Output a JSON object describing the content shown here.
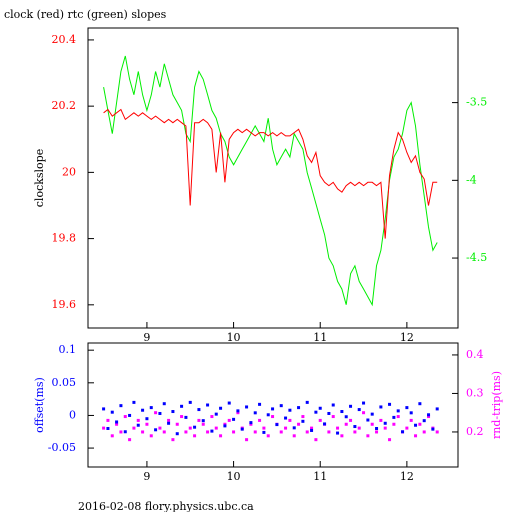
{
  "chart_data": [
    {
      "type": "line",
      "title": "clock (red) rtc (green) slopes",
      "ylabel": "clockslope",
      "x": [
        8.5,
        8.55,
        8.6,
        8.65,
        8.7,
        8.75,
        8.8,
        8.85,
        8.9,
        8.95,
        9,
        9.05,
        9.1,
        9.15,
        9.2,
        9.25,
        9.3,
        9.35,
        9.4,
        9.45,
        9.5,
        9.55,
        9.6,
        9.65,
        9.7,
        9.75,
        9.8,
        9.85,
        9.9,
        9.95,
        10,
        10.05,
        10.1,
        10.15,
        10.2,
        10.25,
        10.3,
        10.35,
        10.4,
        10.45,
        10.5,
        10.55,
        10.6,
        10.65,
        10.7,
        10.75,
        10.8,
        10.85,
        10.9,
        10.95,
        11,
        11.05,
        11.1,
        11.15,
        11.2,
        11.25,
        11.3,
        11.35,
        11.4,
        11.45,
        11.5,
        11.55,
        11.6,
        11.65,
        11.7,
        11.75,
        11.8,
        11.85,
        11.9,
        11.95,
        12,
        12.05,
        12.1,
        12.15,
        12.2,
        12.25,
        12.3,
        12.35
      ],
      "series": [
        {
          "color": "#ff0000",
          "values": [
            20.18,
            20.19,
            20.17,
            20.18,
            20.19,
            20.16,
            20.17,
            20.18,
            20.17,
            20.18,
            20.17,
            20.16,
            20.17,
            20.16,
            20.15,
            20.16,
            20.15,
            20.16,
            20.15,
            20.14,
            19.9,
            20.15,
            20.15,
            20.16,
            20.15,
            20.13,
            20.0,
            20.12,
            19.97,
            20.1,
            20.12,
            20.13,
            20.12,
            20.13,
            20.12,
            20.11,
            20.12,
            20.12,
            20.11,
            20.12,
            20.11,
            20.12,
            20.11,
            20.11,
            20.12,
            20.13,
            20.1,
            20.05,
            20.03,
            20.06,
            19.99,
            19.97,
            19.96,
            19.97,
            19.95,
            19.94,
            19.96,
            19.97,
            19.96,
            19.97,
            19.96,
            19.97,
            19.97,
            19.96,
            19.97,
            19.8,
            19.99,
            20.07,
            20.12,
            20.1,
            20.06,
            20.03,
            20.05,
            20.0,
            19.98,
            19.9,
            19.97,
            19.97
          ]
        },
        {
          "color": "#00ee00",
          "axis": "y2",
          "values": [
            -3.4,
            -3.55,
            -3.7,
            -3.5,
            -3.3,
            -3.2,
            -3.35,
            -3.45,
            -3.3,
            -3.45,
            -3.55,
            -3.45,
            -3.3,
            -3.4,
            -3.25,
            -3.35,
            -3.45,
            -3.5,
            -3.55,
            -3.7,
            -3.75,
            -3.4,
            -3.3,
            -3.35,
            -3.45,
            -3.55,
            -3.6,
            -3.7,
            -3.75,
            -3.85,
            -3.9,
            -3.85,
            -3.8,
            -3.75,
            -3.7,
            -3.65,
            -3.7,
            -3.75,
            -3.6,
            -3.8,
            -3.9,
            -3.85,
            -3.8,
            -3.85,
            -3.7,
            -3.75,
            -3.8,
            -3.95,
            -4.05,
            -4.15,
            -4.25,
            -4.35,
            -4.5,
            -4.55,
            -4.65,
            -4.7,
            -4.8,
            -4.6,
            -4.55,
            -4.65,
            -4.7,
            -4.75,
            -4.8,
            -4.55,
            -4.45,
            -4.25,
            -4.0,
            -3.85,
            -3.8,
            -3.7,
            -3.55,
            -3.5,
            -3.65,
            -3.9,
            -4.1,
            -4.3,
            -4.45,
            -4.4
          ]
        }
      ],
      "xlim": [
        8.32,
        12.59
      ],
      "xticks": [
        9,
        10,
        11,
        12
      ],
      "ylim": [
        19.53,
        20.436
      ],
      "yticks": [
        19.6,
        19.8,
        20,
        20.2,
        20.4
      ],
      "y2lim": [
        -4.95,
        -3.02
      ],
      "y2ticks": [
        -4.5,
        -4,
        -3.5
      ]
    },
    {
      "type": "scatter",
      "ylabel": "offset(ms)",
      "y2label": "rnd-trip(ms)",
      "x": [
        8.5,
        8.55,
        8.6,
        8.65,
        8.7,
        8.75,
        8.8,
        8.85,
        8.9,
        8.95,
        9,
        9.05,
        9.1,
        9.15,
        9.2,
        9.25,
        9.3,
        9.35,
        9.4,
        9.45,
        9.5,
        9.55,
        9.6,
        9.65,
        9.7,
        9.75,
        9.8,
        9.85,
        9.9,
        9.95,
        10,
        10.05,
        10.1,
        10.15,
        10.2,
        10.25,
        10.3,
        10.35,
        10.4,
        10.45,
        10.5,
        10.55,
        10.6,
        10.65,
        10.7,
        10.75,
        10.8,
        10.85,
        10.9,
        10.95,
        11,
        11.05,
        11.1,
        11.15,
        11.2,
        11.25,
        11.3,
        11.35,
        11.4,
        11.45,
        11.5,
        11.55,
        11.6,
        11.65,
        11.7,
        11.75,
        11.8,
        11.85,
        11.9,
        11.95,
        12,
        12.05,
        12.1,
        12.15,
        12.2,
        12.25,
        12.3,
        12.35
      ],
      "series": [
        {
          "color": "#0000ff",
          "values": [
            0.01,
            -0.02,
            0.005,
            -0.01,
            0.015,
            -0.025,
            0,
            0.02,
            -0.015,
            0.008,
            -0.005,
            0.012,
            -0.022,
            0.003,
            0.018,
            -0.012,
            0.006,
            -0.028,
            0.014,
            -0.003,
            0.02,
            -0.018,
            0.009,
            -0.008,
            0.016,
            -0.024,
            0.002,
            0.011,
            -0.016,
            0.019,
            -0.006,
            0.007,
            -0.021,
            0.013,
            -0.011,
            0.004,
            0.017,
            -0.026,
            0.001,
            0.01,
            -0.014,
            0.015,
            -0.004,
            0.008,
            -0.019,
            0.012,
            -0.009,
            0.02,
            -0.023,
            0.005,
            0.011,
            -0.013,
            0.003,
            0.016,
            -0.027,
            0.006,
            -0.002,
            0.014,
            -0.017,
            0.009,
            0.019,
            -0.007,
            0.002,
            -0.02,
            0.013,
            -0.012,
            0.017,
            -0.003,
            0.007,
            -0.025,
            0.012,
            0.004,
            -0.015,
            0.018,
            -0.008,
            0.001,
            -0.021,
            0.01
          ]
        },
        {
          "color": "#ff00ff",
          "axis": "y2",
          "values": [
            0.21,
            0.23,
            0.19,
            0.22,
            0.2,
            0.24,
            0.18,
            0.21,
            0.23,
            0.2,
            0.22,
            0.19,
            0.25,
            0.21,
            0.2,
            0.23,
            0.18,
            0.22,
            0.24,
            0.2,
            0.21,
            0.19,
            0.23,
            0.22,
            0.2,
            0.24,
            0.21,
            0.19,
            0.22,
            0.23,
            0.2,
            0.25,
            0.21,
            0.18,
            0.22,
            0.2,
            0.23,
            0.21,
            0.19,
            0.24,
            0.22,
            0.2,
            0.21,
            0.23,
            0.19,
            0.22,
            0.24,
            0.2,
            0.21,
            0.18,
            0.23,
            0.22,
            0.2,
            0.24,
            0.21,
            0.19,
            0.22,
            0.23,
            0.2,
            0.21,
            0.25,
            0.19,
            0.22,
            0.2,
            0.23,
            0.21,
            0.18,
            0.22,
            0.24,
            0.2,
            0.21,
            0.23,
            0.19,
            0.22,
            0.2,
            0.24,
            0.21,
            0.2
          ]
        }
      ],
      "xlim": [
        8.32,
        12.59
      ],
      "xticks": [
        9,
        10,
        11,
        12
      ],
      "ylim": [
        -0.079,
        0.111
      ],
      "yticks": [
        -0.05,
        0,
        0.05,
        0.1
      ],
      "y2lim": [
        0.109,
        0.431
      ],
      "y2ticks": [
        0.2,
        0.3,
        0.4
      ]
    }
  ],
  "footer": "2016-02-08 flory.physics.ubc.ca"
}
